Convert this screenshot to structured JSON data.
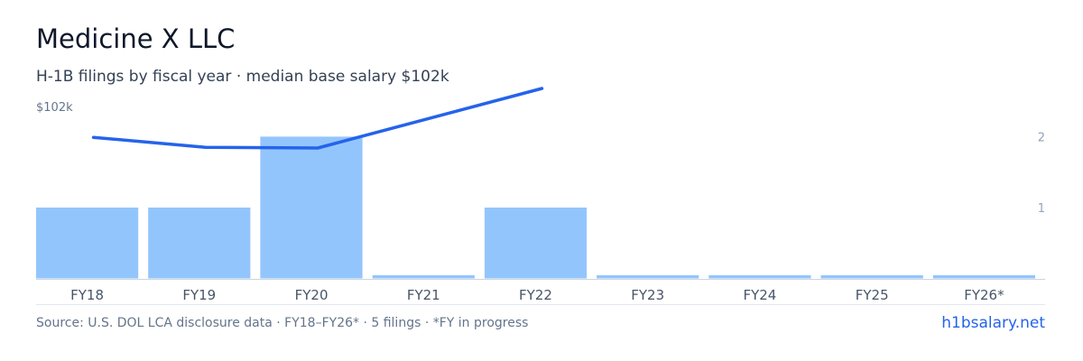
{
  "header": {
    "title": "Medicine X LLC",
    "subtitle": "H-1B filings by fiscal year · median base salary $102k"
  },
  "footer": {
    "source": "Source: U.S. DOL LCA disclosure data · FY18–FY26* · 5 filings · *FY in progress",
    "brand": "h1bsalary.net"
  },
  "colors": {
    "bar": "#93c5fd",
    "line": "#2563eb",
    "axis": "#cbd5e1",
    "tick_text": "#475569",
    "right_tick_text": "#94a3b8"
  },
  "chart_data": {
    "type": "bar",
    "categories": [
      "FY18",
      "FY19",
      "FY20",
      "FY21",
      "FY22",
      "FY23",
      "FY24",
      "FY25",
      "FY26*"
    ],
    "series": [
      {
        "values": [
          1,
          1,
          2,
          0,
          1,
          0,
          0,
          0,
          0
        ],
        "axis": "right"
      },
      {
        "type": "line",
        "values": [
          1.99,
          1.85,
          1.84,
          null,
          2.68,
          null,
          null,
          null,
          null
        ],
        "axis": "left"
      }
    ],
    "y_left": {
      "label": "$102k"
    },
    "y_right": {
      "ticks": [
        "1",
        "2"
      ],
      "ylim": [
        0,
        2.4
      ]
    },
    "grid": false
  }
}
